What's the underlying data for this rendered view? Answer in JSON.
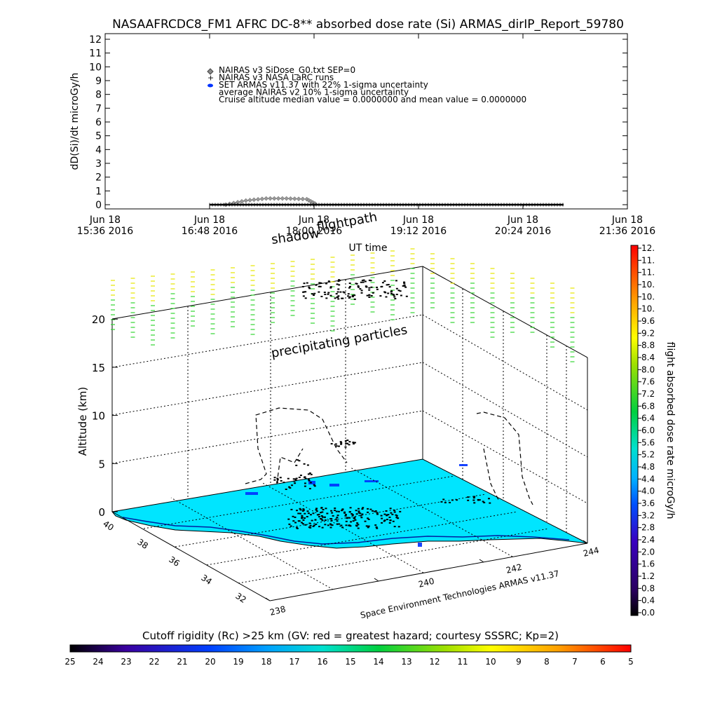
{
  "title": "NASAAFRCDC8_FM1 AFRC DC-8** absorbed dose rate (Si) ARMAS_dirIP_Report_59780",
  "colors": {
    "axis": "#000000",
    "ground": "#00e5ff",
    "shadow": "#000000",
    "flightpath_dots": "#000000",
    "green_particles": "#33d633",
    "yellow_particles": "#e6e600",
    "nairas_marker": "#888888",
    "set_armas_marker": "#0033ff"
  },
  "chart_data": [
    {
      "type": "line",
      "ylabel": "dD(Si)/dt microGy/h",
      "xlabel": "UT time",
      "ylim": [
        0,
        12
      ],
      "yticks": [
        "0",
        "1",
        "2",
        "3",
        "4",
        "5",
        "6",
        "7",
        "8",
        "9",
        "10",
        "11",
        "12"
      ],
      "xticks": [
        {
          "date": "Jun 18",
          "time": "15:36 2016"
        },
        {
          "date": "Jun 18",
          "time": "16:48 2016"
        },
        {
          "date": "Jun 18",
          "time": "18:00 2016"
        },
        {
          "date": "Jun 18",
          "time": "19:12 2016"
        },
        {
          "date": "Jun 18",
          "time": "20:24 2016"
        },
        {
          "date": "Jun 18",
          "time": "21:36 2016"
        }
      ],
      "legend": [
        {
          "marker": "diamond",
          "label": "NAIRAS v3 SiDose_G0.txt SEP=0"
        },
        {
          "marker": "plus",
          "label": "NAIRAS v3 NASA LaRC runs"
        },
        {
          "marker": "dot",
          "label": "SET ARMAS v11.37 with 22% 1-sigma uncertainty"
        },
        {
          "marker": "none",
          "label": "average NAIRAS v2 10% 1-sigma uncertainty"
        },
        {
          "marker": "none",
          "label": "Cruise altitude median value = 0.0000000 and mean value = 0.0000000"
        }
      ],
      "legend_position": "top-center",
      "series": [
        {
          "name": "NAIRAS v3 SiDose_G0.txt SEP=0",
          "x": [
            "16:59",
            "17:13",
            "17:27",
            "17:41",
            "17:55",
            "18:02"
          ],
          "values": [
            0.0,
            0.3,
            0.45,
            0.45,
            0.4,
            0.0
          ]
        },
        {
          "name": "NAIRAS v3 NASA LaRC runs",
          "x": [
            "16:48",
            "20:52"
          ],
          "values": [
            0.0,
            0.0
          ]
        }
      ]
    },
    {
      "type": "scatter",
      "ylabel": "Altitude (km)",
      "zticks": [
        "0",
        "5",
        "10",
        "15",
        "20"
      ],
      "xticks": [
        "238",
        "240",
        "242",
        "244"
      ],
      "yticks": [
        "32",
        "34",
        "36",
        "38",
        "40"
      ],
      "annotations": [
        "shadow",
        "flightpath",
        "precipitating particles"
      ],
      "credit": "Space Environment Technologies ARMAS v11.37",
      "colorbar_right": {
        "label": "flight absorbed dose rate microGy/h",
        "ticks": [
          "12.",
          "11.",
          "11.",
          "10.",
          "10.",
          "10.",
          "9.6",
          "9.2",
          "8.8",
          "8.4",
          "8.0",
          "7.6",
          "7.2",
          "6.8",
          "6.4",
          "6.0",
          "5.6",
          "5.2",
          "4.8",
          "4.4",
          "4.0",
          "3.6",
          "3.2",
          "2.8",
          "2.4",
          "2.0",
          "1.6",
          "1.2",
          "0.8",
          "0.4",
          "0.0"
        ]
      },
      "colorbar_bottom": {
        "label": "Cutoff rigidity (Rc) >25 km (GV: red = greatest hazard; courtesy SSSRC; Kp=2)",
        "ticks": [
          "25",
          "24",
          "23",
          "22",
          "21",
          "20",
          "19",
          "18",
          "17",
          "16",
          "15",
          "14",
          "13",
          "12",
          "11",
          "10",
          "9",
          "8",
          "7",
          "6",
          "5"
        ]
      }
    }
  ]
}
